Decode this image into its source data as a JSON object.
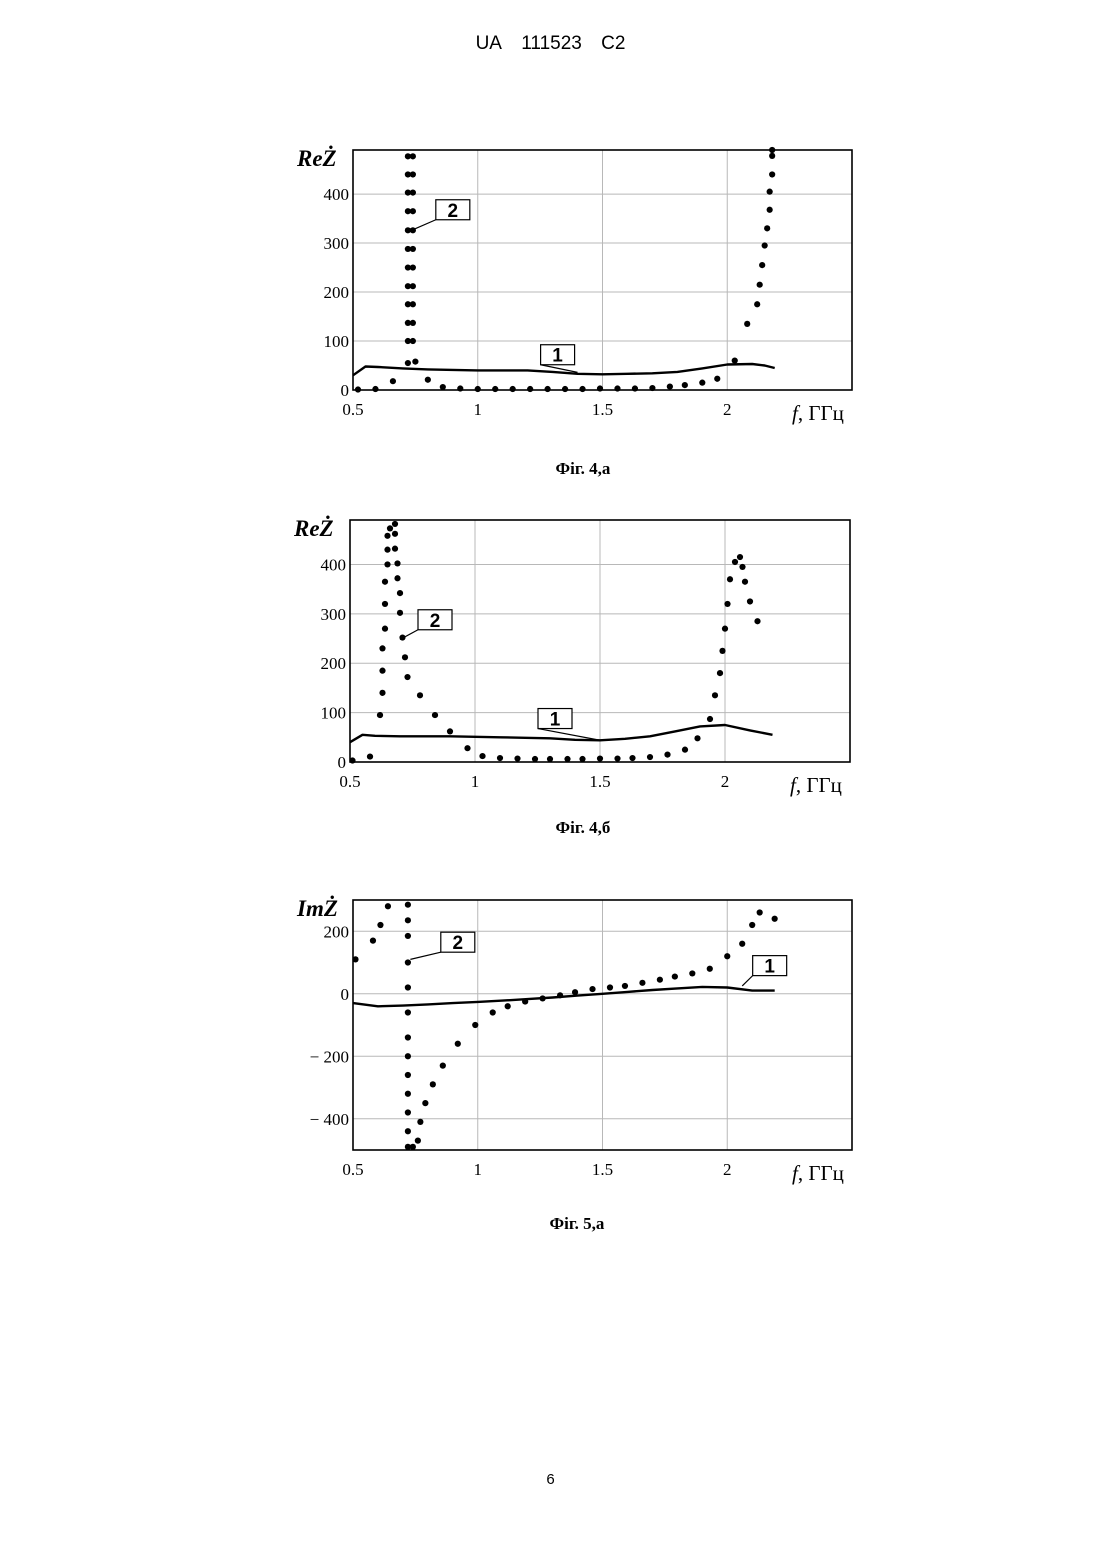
{
  "header": {
    "country": "UA",
    "number": "111523",
    "kind": "C2"
  },
  "page_number": "6",
  "chart_data": [
    {
      "type": "scatter",
      "caption": "Фіг. 4,а",
      "ylabel": "ReŻ",
      "xlabel_var": "f",
      "xlabel_unit": ", ГГц",
      "xlim": [
        0.5,
        2.5
      ],
      "ylim": [
        0,
        490
      ],
      "xticks": [
        0.5,
        1,
        1.5,
        2
      ],
      "xtick_labels": [
        "0.5",
        "1",
        "1.5",
        "2"
      ],
      "yticks": [
        0,
        100,
        200,
        300,
        400
      ],
      "ytick_labels": [
        "0",
        "100",
        "200",
        "300",
        "400"
      ],
      "grid": true,
      "series": [
        {
          "name": "1",
          "style": "line",
          "x": [
            0.5,
            0.55,
            0.6,
            0.7,
            0.8,
            0.9,
            1.0,
            1.1,
            1.2,
            1.3,
            1.4,
            1.5,
            1.6,
            1.7,
            1.8,
            1.9,
            2.0,
            2.1,
            2.15,
            2.19
          ],
          "y": [
            30,
            48,
            47,
            44,
            42,
            41,
            40,
            40,
            40,
            37,
            33,
            32,
            33,
            34,
            37,
            44,
            52,
            53,
            50,
            45
          ]
        },
        {
          "name": "2",
          "style": "dots",
          "x": [
            0.52,
            0.59,
            0.66,
            0.72,
            0.72,
            0.72,
            0.72,
            0.72,
            0.72,
            0.72,
            0.72,
            0.72,
            0.72,
            0.72,
            0.72,
            0.74,
            0.74,
            0.74,
            0.74,
            0.74,
            0.74,
            0.74,
            0.74,
            0.74,
            0.74,
            0.74,
            0.75,
            0.8,
            0.86,
            0.93,
            1.0,
            1.07,
            1.14,
            1.21,
            1.28,
            1.35,
            1.42,
            1.49,
            1.56,
            1.63,
            1.7,
            1.77,
            1.83,
            1.9,
            1.96,
            2.03,
            2.08,
            2.12,
            2.13,
            2.14,
            2.15,
            2.16,
            2.17,
            2.17,
            2.18,
            2.18,
            2.18
          ],
          "y": [
            1,
            2,
            18,
            55,
            100,
            137,
            175,
            212,
            250,
            288,
            326,
            365,
            403,
            440,
            477,
            477,
            440,
            403,
            365,
            326,
            288,
            250,
            212,
            175,
            137,
            100,
            58,
            21,
            6,
            3,
            2,
            2,
            2,
            2,
            2,
            2,
            2,
            3,
            3,
            3,
            4,
            7,
            10,
            15,
            23,
            60,
            135,
            175,
            215,
            255,
            295,
            330,
            368,
            405,
            440,
            478,
            490
          ]
        }
      ],
      "labels": [
        {
          "text": "2",
          "target_x": 0.73,
          "target_y": 325,
          "box_x": 0.88,
          "box_y": 368
        },
        {
          "text": "1",
          "target_x": 1.4,
          "target_y": 36,
          "box_x": 1.3,
          "box_y": 72
        }
      ]
    },
    {
      "type": "scatter",
      "caption": "Фіг. 4,б",
      "ylabel": "ReŻ",
      "xlabel_var": "f",
      "xlabel_unit": ", ГГц",
      "xlim": [
        0.5,
        2.5
      ],
      "ylim": [
        0,
        490
      ],
      "xticks": [
        0.5,
        1,
        1.5,
        2
      ],
      "xtick_labels": [
        "0.5",
        "1",
        "1.5",
        "2"
      ],
      "yticks": [
        0,
        100,
        200,
        300,
        400
      ],
      "ytick_labels": [
        "0",
        "100",
        "200",
        "300",
        "400"
      ],
      "grid": true,
      "series": [
        {
          "name": "1",
          "style": "line",
          "x": [
            0.5,
            0.55,
            0.6,
            0.7,
            0.8,
            0.9,
            1.0,
            1.1,
            1.2,
            1.3,
            1.4,
            1.5,
            1.6,
            1.7,
            1.8,
            1.9,
            2.0,
            2.1,
            2.19
          ],
          "y": [
            40,
            55,
            53,
            52,
            52,
            52,
            51,
            50,
            49,
            48,
            45,
            44,
            47,
            52,
            62,
            72,
            75,
            64,
            55
          ]
        },
        {
          "name": "2",
          "style": "dots",
          "x": [
            0.51,
            0.58,
            0.62,
            0.63,
            0.63,
            0.63,
            0.64,
            0.64,
            0.64,
            0.65,
            0.65,
            0.65,
            0.66,
            0.68,
            0.68,
            0.68,
            0.69,
            0.69,
            0.7,
            0.7,
            0.71,
            0.72,
            0.73,
            0.78,
            0.84,
            0.9,
            0.97,
            1.03,
            1.1,
            1.17,
            1.24,
            1.3,
            1.37,
            1.43,
            1.5,
            1.57,
            1.63,
            1.7,
            1.77,
            1.84,
            1.89,
            1.94,
            1.96,
            1.98,
            1.99,
            2.0,
            2.01,
            2.02,
            2.04,
            2.06,
            2.07,
            2.08,
            2.1,
            2.13
          ],
          "y": [
            3,
            11,
            95,
            140,
            185,
            230,
            270,
            320,
            365,
            400,
            430,
            458,
            473,
            482,
            462,
            432,
            402,
            372,
            342,
            302,
            252,
            212,
            172,
            135,
            95,
            62,
            28,
            12,
            8,
            7,
            6,
            6,
            6,
            6,
            7,
            7,
            8,
            10,
            15,
            25,
            48,
            87,
            135,
            180,
            225,
            270,
            320,
            370,
            405,
            415,
            395,
            365,
            325,
            285
          ]
        }
      ],
      "labels": [
        {
          "text": "2",
          "target_x": 0.7,
          "target_y": 248,
          "box_x": 0.82,
          "box_y": 288
        },
        {
          "text": "1",
          "target_x": 1.5,
          "target_y": 44,
          "box_x": 1.3,
          "box_y": 88
        }
      ]
    },
    {
      "type": "scatter",
      "caption": "Фіг. 5,а",
      "ylabel": "ImŻ",
      "xlabel_var": "f",
      "xlabel_unit": ", ГГц",
      "xlim": [
        0.5,
        2.5
      ],
      "ylim": [
        -500,
        300
      ],
      "xticks": [
        0.5,
        1,
        1.5,
        2
      ],
      "xtick_labels": [
        "0.5",
        "1",
        "1.5",
        "2"
      ],
      "yticks": [
        -400,
        -200,
        0,
        200
      ],
      "ytick_labels": [
        "− 400",
        "− 200",
        "0",
        "200"
      ],
      "grid": true,
      "series": [
        {
          "name": "1",
          "style": "line",
          "x": [
            0.5,
            0.6,
            0.7,
            0.8,
            0.9,
            1.0,
            1.1,
            1.2,
            1.3,
            1.4,
            1.5,
            1.6,
            1.7,
            1.8,
            1.9,
            2.0,
            2.1,
            2.19
          ],
          "y": [
            -30,
            -40,
            -38,
            -34,
            -30,
            -26,
            -22,
            -17,
            -12,
            -6,
            0,
            6,
            12,
            17,
            22,
            20,
            10,
            10
          ]
        },
        {
          "name": "2",
          "style": "dots",
          "x": [
            0.51,
            0.58,
            0.61,
            0.64,
            0.72,
            0.72,
            0.72,
            0.72,
            0.72,
            0.72,
            0.72,
            0.72,
            0.72,
            0.72,
            0.72,
            0.72,
            0.72,
            0.74,
            0.76,
            0.77,
            0.79,
            0.82,
            0.86,
            0.92,
            0.99,
            1.06,
            1.12,
            1.19,
            1.26,
            1.33,
            1.39,
            1.46,
            1.53,
            1.59,
            1.66,
            1.73,
            1.79,
            1.86,
            1.93,
            2.0,
            2.06,
            2.1,
            2.13,
            2.19
          ],
          "y": [
            110,
            170,
            220,
            280,
            285,
            235,
            185,
            100,
            20,
            -60,
            -140,
            -200,
            -260,
            -320,
            -380,
            -440,
            -490,
            -490,
            -470,
            -410,
            -350,
            -290,
            -230,
            -160,
            -100,
            -60,
            -40,
            -25,
            -15,
            -5,
            5,
            15,
            20,
            25,
            35,
            45,
            55,
            65,
            80,
            120,
            160,
            220,
            260,
            240
          ]
        }
      ],
      "labels": [
        {
          "text": "2",
          "target_x": 0.73,
          "target_y": 110,
          "box_x": 0.9,
          "box_y": 165
        },
        {
          "text": "1",
          "target_x": 2.06,
          "target_y": 25,
          "box_x": 2.15,
          "box_y": 90
        }
      ]
    }
  ]
}
